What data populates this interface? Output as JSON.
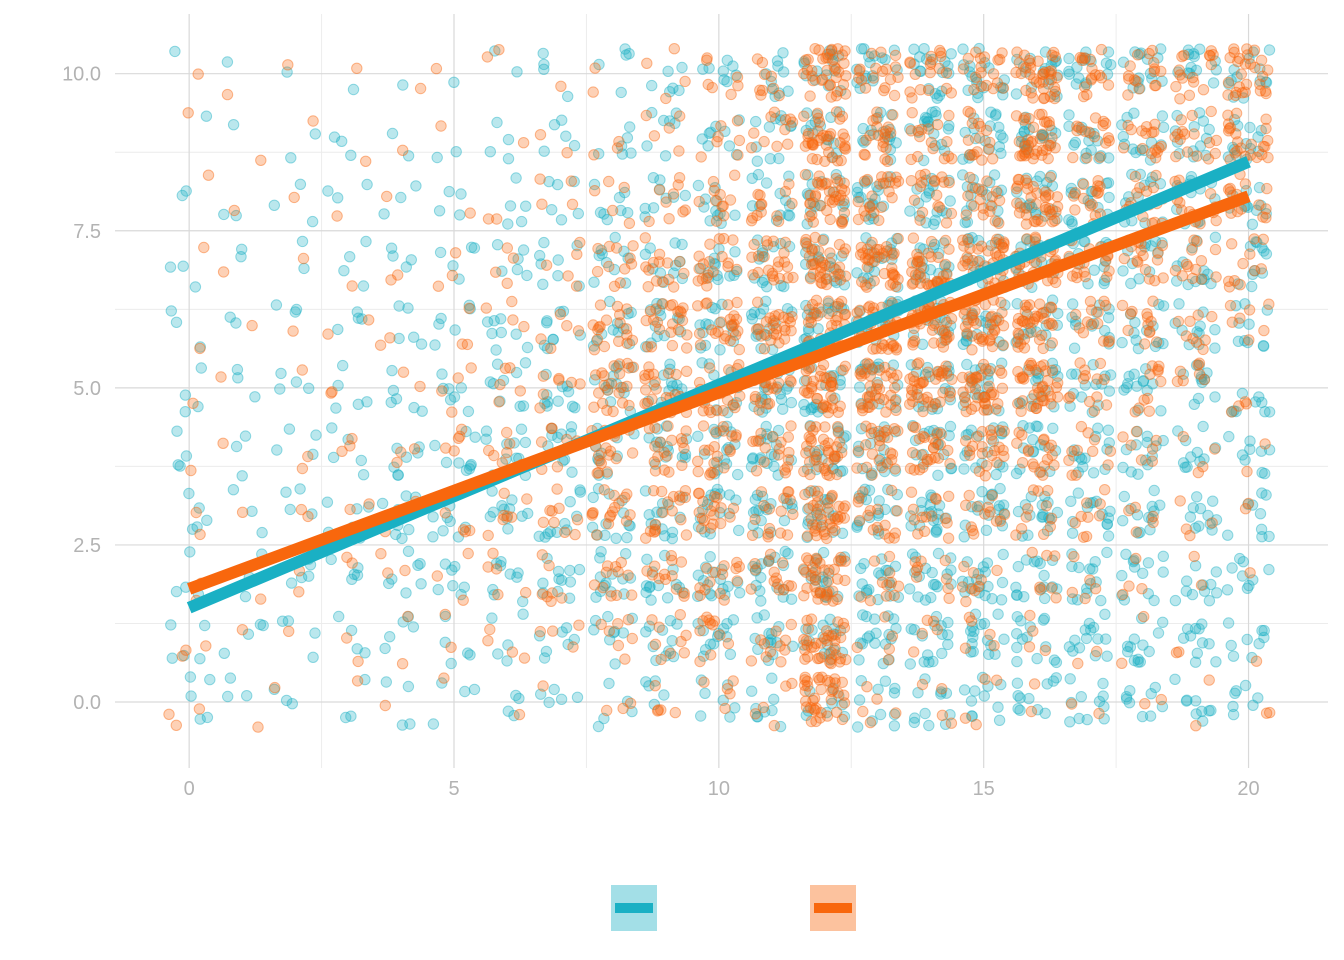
{
  "chart_data": {
    "type": "scatter",
    "title": "",
    "xlabel": "",
    "ylabel": "",
    "xlim": [
      -1.4,
      21.5
    ],
    "ylim": [
      -1.05,
      10.95
    ],
    "x_ticks": [
      0,
      5,
      10,
      15,
      20
    ],
    "x_tick_labels": [
      "0",
      "5",
      "10",
      "15",
      "20"
    ],
    "y_ticks": [
      0,
      2.5,
      5,
      7.5,
      10
    ],
    "y_tick_labels": [
      "0.0",
      "2.5",
      "5.0",
      "7.5",
      "10.0"
    ],
    "grid": true,
    "legend_position": "bottom",
    "jitter": 0.4,
    "colors": {
      "series_a": "#1ab0c4",
      "series_b": "#f8670d"
    },
    "series": [
      {
        "key": "series_a",
        "color": "#1ab0c4",
        "point_alpha": 0.3,
        "trend": {
          "x": [
            0,
            20
          ],
          "y": [
            1.5,
            8.6
          ]
        },
        "density": [
          [
            0.25,
            0.15,
            0.15,
            0.15,
            0.2,
            0.2,
            0.2,
            0.25,
            0.25,
            0.3,
            0.4,
            0.5,
            0.5,
            0.6,
            0.6,
            0.6,
            0.6,
            0.6,
            0.5,
            0.5,
            0.4
          ],
          [
            0.25,
            0.2,
            0.2,
            0.2,
            0.3,
            0.3,
            0.3,
            0.4,
            0.5,
            0.6,
            0.7,
            0.8,
            0.9,
            1.0,
            0.9,
            0.9,
            0.8,
            0.8,
            0.7,
            0.6,
            0.5
          ],
          [
            0.2,
            0.15,
            0.25,
            0.3,
            0.4,
            0.4,
            0.5,
            0.6,
            0.7,
            0.8,
            0.9,
            1.0,
            1.0,
            1.0,
            1.0,
            1.0,
            0.9,
            0.8,
            0.7,
            0.6,
            0.5
          ],
          [
            0.25,
            0.15,
            0.2,
            0.35,
            0.5,
            0.5,
            0.6,
            0.6,
            0.7,
            0.8,
            0.9,
            1.0,
            1.0,
            1.0,
            1.0,
            1.0,
            0.9,
            0.8,
            0.7,
            0.6,
            0.5
          ],
          [
            0.2,
            0.15,
            0.2,
            0.3,
            0.4,
            0.5,
            0.6,
            0.6,
            0.7,
            0.8,
            0.9,
            1.0,
            1.0,
            1.0,
            1.0,
            1.0,
            0.9,
            0.8,
            0.7,
            0.6,
            0.5
          ],
          [
            0.2,
            0.15,
            0.2,
            0.3,
            0.35,
            0.4,
            0.5,
            0.6,
            0.7,
            0.7,
            0.8,
            1.0,
            1.0,
            1.0,
            1.0,
            1.0,
            0.9,
            0.8,
            0.7,
            0.6,
            0.5
          ],
          [
            0.15,
            0.1,
            0.15,
            0.2,
            0.3,
            0.35,
            0.45,
            0.5,
            0.6,
            0.7,
            0.8,
            0.9,
            1.0,
            1.0,
            1.0,
            1.0,
            0.9,
            0.8,
            0.7,
            0.6,
            0.55
          ],
          [
            0.15,
            0.1,
            0.1,
            0.2,
            0.2,
            0.3,
            0.35,
            0.45,
            0.55,
            0.6,
            0.7,
            0.8,
            1.0,
            1.0,
            1.0,
            1.0,
            1.0,
            0.9,
            0.8,
            0.7,
            0.6
          ],
          [
            0.1,
            0.1,
            0.15,
            0.15,
            0.15,
            0.2,
            0.3,
            0.35,
            0.45,
            0.5,
            0.6,
            0.7,
            0.9,
            1.0,
            1.0,
            1.0,
            1.0,
            0.9,
            0.8,
            0.7,
            0.6
          ],
          [
            0.05,
            0.05,
            0.1,
            0.15,
            0.1,
            0.1,
            0.2,
            0.3,
            0.35,
            0.4,
            0.5,
            0.6,
            0.8,
            0.9,
            1.0,
            1.0,
            1.0,
            0.9,
            0.8,
            0.7,
            0.7
          ],
          [
            0.05,
            0.05,
            0.05,
            0.05,
            0.05,
            0.05,
            0.1,
            0.2,
            0.3,
            0.35,
            0.45,
            0.55,
            0.75,
            0.9,
            1.0,
            1.0,
            1.0,
            0.9,
            0.8,
            0.7,
            0.7
          ]
        ]
      },
      {
        "key": "series_b",
        "color": "#f8670d",
        "point_alpha": 0.3,
        "trend": {
          "x": [
            0,
            20
          ],
          "y": [
            1.8,
            8.05
          ]
        },
        "density": [
          [
            0.15,
            0.05,
            0.05,
            0.05,
            0.05,
            0.05,
            0.05,
            0.05,
            0.15,
            0.3,
            0.3,
            0.3,
            2.0,
            0.3,
            0.2,
            0.2,
            0.1,
            0.1,
            0.1,
            0.1,
            0.1
          ],
          [
            0.15,
            0.05,
            0.05,
            0.1,
            0.1,
            0.1,
            0.2,
            0.2,
            0.4,
            0.5,
            0.6,
            0.6,
            2.0,
            0.3,
            0.3,
            0.3,
            0.2,
            0.1,
            0.1,
            0.1,
            0.05
          ],
          [
            0.1,
            0.05,
            0.1,
            0.1,
            0.15,
            0.15,
            0.3,
            0.4,
            0.6,
            0.7,
            0.8,
            0.8,
            2.0,
            0.6,
            0.5,
            0.5,
            0.4,
            0.3,
            0.2,
            0.1,
            0.05
          ],
          [
            0.1,
            0.05,
            0.1,
            0.1,
            0.2,
            0.3,
            0.4,
            0.5,
            0.9,
            1.0,
            1.0,
            0.9,
            2.0,
            0.9,
            0.8,
            0.7,
            0.6,
            0.5,
            0.3,
            0.2,
            0.1
          ],
          [
            0.05,
            0.05,
            0.1,
            0.15,
            0.15,
            0.3,
            0.4,
            0.5,
            1.0,
            1.0,
            1.1,
            1.0,
            2.0,
            1.4,
            1.4,
            1.2,
            1.0,
            0.6,
            0.4,
            0.2,
            0.1
          ],
          [
            0.05,
            0.05,
            0.05,
            0.1,
            0.1,
            0.2,
            0.3,
            0.4,
            1.2,
            1.4,
            1.4,
            1.3,
            2.0,
            2.0,
            2.0,
            2.0,
            2.0,
            0.7,
            0.6,
            0.4,
            0.2
          ],
          [
            0.05,
            0.05,
            0.05,
            0.1,
            0.1,
            0.15,
            0.2,
            0.3,
            1.0,
            1.2,
            1.3,
            1.4,
            2.0,
            2.0,
            2.0,
            2.0,
            2.0,
            0.8,
            0.7,
            0.5,
            0.4
          ],
          [
            0.05,
            0.05,
            0.05,
            0.05,
            0.1,
            0.15,
            0.2,
            0.3,
            0.6,
            0.8,
            1.0,
            1.2,
            2.0,
            2.0,
            2.0,
            2.0,
            2.0,
            1.0,
            0.9,
            0.7,
            0.6
          ],
          [
            0.05,
            0.05,
            0.05,
            0.05,
            0.05,
            0.05,
            0.1,
            0.2,
            0.3,
            0.5,
            0.6,
            0.7,
            2.0,
            1.2,
            1.0,
            1.0,
            2.0,
            0.9,
            0.9,
            0.8,
            0.8
          ],
          [
            0.05,
            0.05,
            0.05,
            0.05,
            0.05,
            0.05,
            0.05,
            0.1,
            0.15,
            0.3,
            0.4,
            0.6,
            2.0,
            1.1,
            0.9,
            0.9,
            2.0,
            0.9,
            0.9,
            0.9,
            1.3
          ],
          [
            0.05,
            0.05,
            0.05,
            0.05,
            0.05,
            0.05,
            0.1,
            0.05,
            0.1,
            0.2,
            0.4,
            0.5,
            2.0,
            1.0,
            1.0,
            1.0,
            2.0,
            0.9,
            0.9,
            0.9,
            1.5
          ]
        ]
      }
    ]
  }
}
